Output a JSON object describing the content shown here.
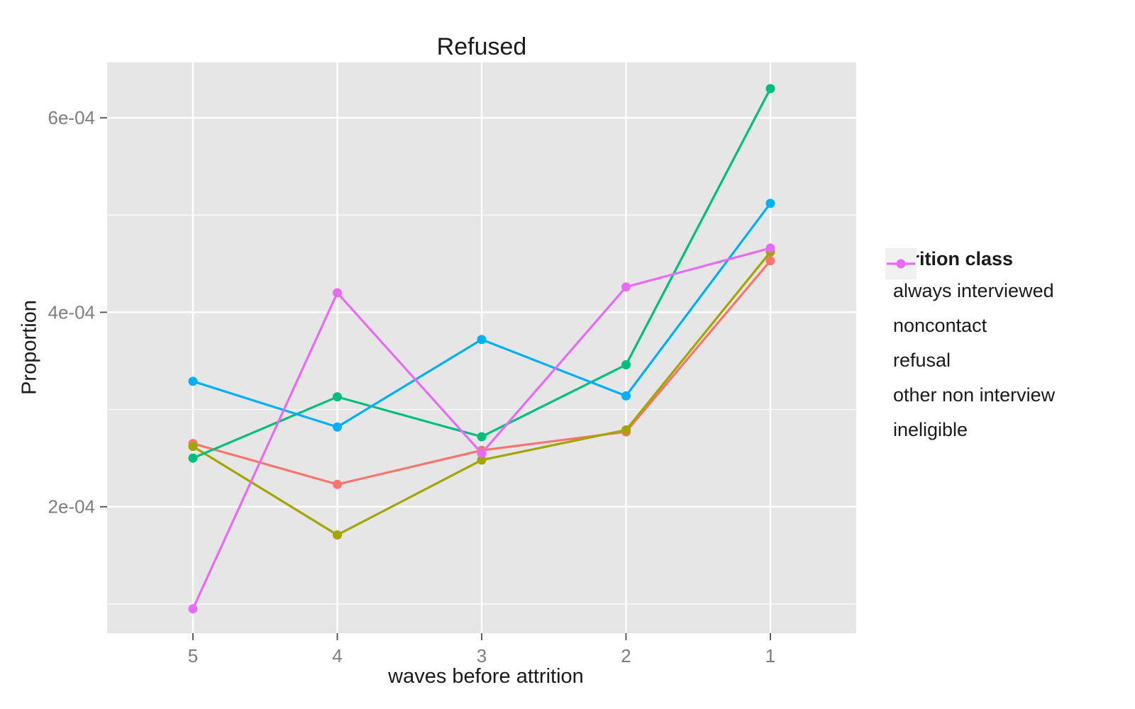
{
  "chart_data": {
    "type": "line",
    "title": "Refused",
    "xlabel": "waves before attrition",
    "ylabel": "Proportion",
    "x_categories": [
      5,
      4,
      3,
      2,
      1
    ],
    "xtick_labels": [
      "5",
      "4",
      "3",
      "2",
      "1"
    ],
    "x_axis_reversed": true,
    "ytick_labels": [
      "2e-04",
      "4e-04",
      "6e-04"
    ],
    "ytick_values": [
      0.0002,
      0.0004,
      0.0006
    ],
    "yminor_values": [
      0.0001,
      0.0003,
      0.0005
    ],
    "ylim": [
      7e-05,
      0.000657
    ],
    "grid": "white major and minor gridlines on gray panel",
    "legend": {
      "title": "Attrition class",
      "position": "right"
    },
    "series": [
      {
        "name": "always interviewed",
        "color": "#F8766D",
        "values": [
          0.000265,
          0.000223,
          0.000258,
          0.000277,
          0.000453
        ]
      },
      {
        "name": "noncontact",
        "color": "#A3A500",
        "values": [
          0.000262,
          0.000171,
          0.000248,
          0.000279,
          0.000462
        ]
      },
      {
        "name": "refusal",
        "color": "#00BF7D",
        "values": [
          0.00025,
          0.000313,
          0.000272,
          0.000346,
          0.00063
        ]
      },
      {
        "name": "other non interview",
        "color": "#00B0F6",
        "values": [
          0.000329,
          0.000282,
          0.000372,
          0.000314,
          0.000512
        ]
      },
      {
        "name": "ineligible",
        "color": "#E76BF3",
        "values": [
          9.5e-05,
          0.00042,
          0.000255,
          0.000426,
          0.000466
        ]
      }
    ]
  },
  "colors": {
    "page_bg": "#FFFFFF",
    "panel_bg": "#E6E6E6",
    "grid": "#FFFFFF",
    "tick_mark": "#4D4D4D",
    "tick_label": "#7E7E7E",
    "text": "#1A1A1A",
    "legend_key_bg": "#F0F0F0"
  }
}
